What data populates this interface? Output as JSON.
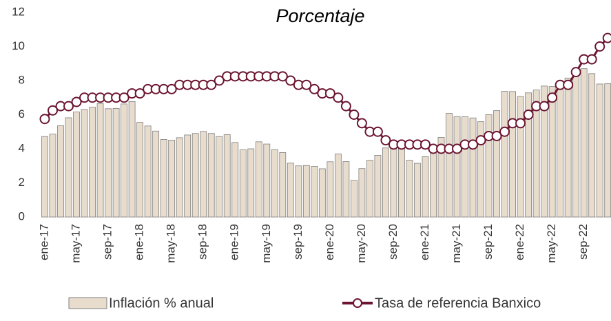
{
  "chart_data": {
    "type": "bar_line",
    "title": "Porcentaje",
    "categories": [
      "ene-17",
      null,
      null,
      null,
      "may-17",
      null,
      null,
      null,
      "sep-17",
      null,
      null,
      null,
      "ene-18",
      null,
      null,
      null,
      "may-18",
      null,
      null,
      null,
      "sep-18",
      null,
      null,
      null,
      "ene-19",
      null,
      null,
      null,
      "may-19",
      null,
      null,
      null,
      "sep-19",
      null,
      null,
      null,
      "ene-20",
      null,
      null,
      null,
      "may-20",
      null,
      null,
      null,
      "sep-20",
      null,
      null,
      null,
      "ene-21",
      null,
      null,
      null,
      "may-21",
      null,
      null,
      null,
      "sep-21",
      null,
      null,
      null,
      "ene-22",
      null,
      null,
      null,
      "may-22",
      null,
      null,
      null,
      "sep-22",
      null,
      null,
      null
    ],
    "series": [
      {
        "name": "Inflación % anual",
        "color": "#e8dccd",
        "values": [
          4.72,
          4.86,
          5.35,
          5.82,
          6.16,
          6.31,
          6.44,
          6.66,
          6.35,
          6.37,
          6.63,
          6.77,
          5.55,
          5.34,
          5.04,
          4.55,
          4.51,
          4.65,
          4.81,
          4.9,
          5.02,
          4.9,
          4.72,
          4.83,
          4.37,
          3.94,
          4.0,
          4.41,
          4.28,
          3.95,
          3.78,
          3.16,
          3.0,
          3.02,
          2.97,
          2.83,
          3.24,
          3.7,
          3.25,
          2.15,
          2.84,
          3.33,
          3.62,
          4.05,
          4.01,
          4.09,
          3.33,
          3.15,
          3.54,
          3.76,
          4.67,
          6.08,
          5.89,
          5.88,
          5.81,
          5.59,
          6.0,
          6.24,
          7.37,
          7.36,
          7.07,
          7.28,
          7.45,
          7.68,
          7.65,
          7.99,
          8.15,
          8.7,
          8.7,
          8.41,
          7.8,
          7.82
        ]
      },
      {
        "name": "Tasa de referencia Banxico",
        "color": "#6b1530",
        "values": [
          5.75,
          6.25,
          6.5,
          6.5,
          6.75,
          7,
          7,
          7,
          7,
          7,
          7,
          7.25,
          7.25,
          7.5,
          7.5,
          7.5,
          7.5,
          7.75,
          7.75,
          7.75,
          7.75,
          7.75,
          8,
          8.25,
          8.25,
          8.25,
          8.25,
          8.25,
          8.25,
          8.25,
          8.25,
          8,
          7.75,
          7.75,
          7.5,
          7.25,
          7.25,
          7,
          6.5,
          6,
          5.5,
          5,
          5,
          4.5,
          4.25,
          4.25,
          4.25,
          4.25,
          4.25,
          4,
          4,
          4,
          4,
          4.25,
          4.25,
          4.5,
          4.75,
          4.75,
          5,
          5.5,
          5.5,
          6,
          6.5,
          6.5,
          7,
          7.75,
          7.75,
          8.5,
          9.25,
          9.25,
          10,
          10.5
        ]
      }
    ],
    "ylim": [
      0,
      12
    ],
    "yticks": [
      0,
      2,
      4,
      6,
      8,
      10,
      12
    ]
  }
}
